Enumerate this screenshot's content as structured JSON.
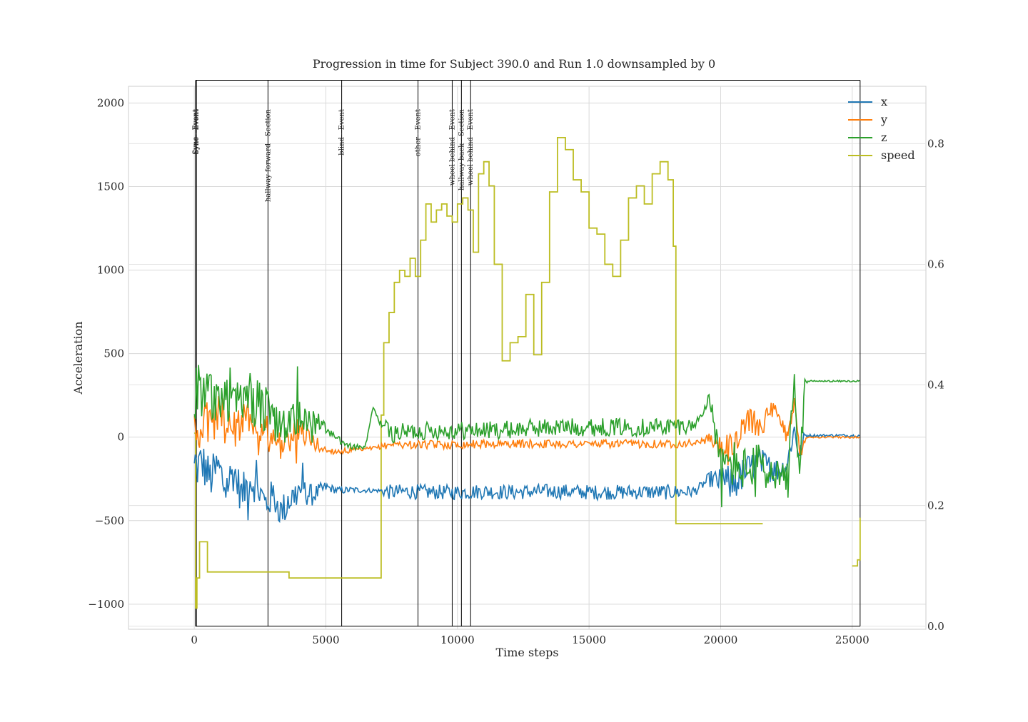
{
  "chart_data": {
    "type": "line",
    "title": "Progression in time for Subject 390.0 and Run 1.0 downsampled by 0",
    "xlabel": "Time steps",
    "ylabel": "Acceleration",
    "xlim": [
      -2500,
      27800
    ],
    "ylim": [
      -1150,
      2100
    ],
    "y2lim": [
      -0.005,
      0.895
    ],
    "x_ticks": [
      "0",
      "5000",
      "10000",
      "15000",
      "20000",
      "25000"
    ],
    "x_tick_values": [
      0,
      5000,
      10000,
      15000,
      20000,
      25000
    ],
    "y_ticks": [
      "−1000",
      "−500",
      "0",
      "500",
      "1000",
      "1500",
      "2000"
    ],
    "y_tick_values": [
      -1000,
      -500,
      0,
      500,
      1000,
      1500,
      2000
    ],
    "y2_ticks": [
      "0.0",
      "0.2",
      "0.4",
      "0.6",
      "0.8"
    ],
    "y2_tick_values": [
      0.0,
      0.2,
      0.4,
      0.6,
      0.8
    ],
    "grid": true,
    "legend": "top-right",
    "colors": {
      "x": "#1f77b4",
      "y": "#ff7f0e",
      "z": "#2ca02c",
      "speed": "#bcbd22",
      "events": "#000000"
    },
    "series": [
      {
        "name": "x",
        "axis": "left",
        "points": [
          [
            0,
            -200
          ],
          [
            300,
            -150
          ],
          [
            600,
            -250
          ],
          [
            900,
            -180
          ],
          [
            1200,
            -300
          ],
          [
            1500,
            -200
          ],
          [
            1800,
            -350
          ],
          [
            2100,
            -250
          ],
          [
            2400,
            -300
          ],
          [
            2700,
            -400
          ],
          [
            3000,
            -350
          ],
          [
            3300,
            -450
          ],
          [
            3600,
            -380
          ],
          [
            4000,
            -320
          ],
          [
            4500,
            -350
          ],
          [
            5000,
            -300
          ],
          [
            5500,
            -320
          ],
          [
            6000,
            -315
          ],
          [
            6500,
            -318
          ],
          [
            7000,
            -320
          ],
          [
            7500,
            -330
          ],
          [
            8000,
            -325
          ],
          [
            9000,
            -330
          ],
          [
            10000,
            -330
          ],
          [
            11000,
            -325
          ],
          [
            12000,
            -330
          ],
          [
            13000,
            -325
          ],
          [
            14000,
            -325
          ],
          [
            15000,
            -330
          ],
          [
            16000,
            -330
          ],
          [
            17000,
            -328
          ],
          [
            18000,
            -330
          ],
          [
            19000,
            -325
          ],
          [
            19600,
            -250
          ],
          [
            20000,
            -270
          ],
          [
            20500,
            -280
          ],
          [
            21000,
            -200
          ],
          [
            21500,
            -150
          ],
          [
            22000,
            -200
          ],
          [
            22500,
            -180
          ],
          [
            22800,
            50
          ],
          [
            23000,
            -120
          ],
          [
            23200,
            10
          ],
          [
            23600,
            10
          ],
          [
            24500,
            10
          ],
          [
            25300,
            10
          ]
        ],
        "amp": [
          [
            0,
            140
          ],
          [
            4000,
            90
          ],
          [
            5200,
            25
          ],
          [
            7000,
            12
          ],
          [
            7300,
            45
          ],
          [
            18500,
            45
          ],
          [
            19300,
            25
          ],
          [
            20300,
            110
          ],
          [
            23100,
            60
          ],
          [
            23300,
            8
          ],
          [
            25300,
            8
          ]
        ]
      },
      {
        "name": "y",
        "axis": "left",
        "points": [
          [
            0,
            0
          ],
          [
            300,
            100
          ],
          [
            600,
            50
          ],
          [
            900,
            150
          ],
          [
            1200,
            80
          ],
          [
            1500,
            120
          ],
          [
            1800,
            60
          ],
          [
            2100,
            150
          ],
          [
            2400,
            50
          ],
          [
            2700,
            30
          ],
          [
            3000,
            -20
          ],
          [
            3500,
            -50
          ],
          [
            4000,
            50
          ],
          [
            4500,
            -30
          ],
          [
            5000,
            -80
          ],
          [
            5500,
            -85
          ],
          [
            6000,
            -80
          ],
          [
            6500,
            -75
          ],
          [
            7000,
            -60
          ],
          [
            7500,
            -40
          ],
          [
            8000,
            -45
          ],
          [
            9000,
            -45
          ],
          [
            10000,
            -45
          ],
          [
            11000,
            -40
          ],
          [
            12000,
            -40
          ],
          [
            13000,
            -40
          ],
          [
            14000,
            -40
          ],
          [
            15000,
            -40
          ],
          [
            16000,
            -40
          ],
          [
            17000,
            -40
          ],
          [
            18000,
            -40
          ],
          [
            19000,
            -35
          ],
          [
            19600,
            -10
          ],
          [
            20000,
            -70
          ],
          [
            20500,
            -70
          ],
          [
            21000,
            100
          ],
          [
            21500,
            80
          ],
          [
            22000,
            150
          ],
          [
            22500,
            20
          ],
          [
            22800,
            200
          ],
          [
            23000,
            -100
          ],
          [
            23200,
            0
          ],
          [
            23600,
            0
          ],
          [
            24500,
            0
          ],
          [
            25300,
            0
          ]
        ],
        "amp": [
          [
            0,
            150
          ],
          [
            4000,
            80
          ],
          [
            5200,
            20
          ],
          [
            7000,
            12
          ],
          [
            7300,
            25
          ],
          [
            18500,
            25
          ],
          [
            19300,
            15
          ],
          [
            20300,
            90
          ],
          [
            23100,
            60
          ],
          [
            23300,
            6
          ],
          [
            25300,
            6
          ]
        ]
      },
      {
        "name": "z",
        "axis": "left",
        "points": [
          [
            0,
            270
          ],
          [
            300,
            300
          ],
          [
            600,
            250
          ],
          [
            900,
            280
          ],
          [
            1200,
            200
          ],
          [
            1500,
            260
          ],
          [
            1800,
            150
          ],
          [
            2100,
            250
          ],
          [
            2400,
            200
          ],
          [
            2700,
            150
          ],
          [
            3000,
            100
          ],
          [
            3500,
            50
          ],
          [
            4000,
            150
          ],
          [
            4500,
            100
          ],
          [
            5000,
            50
          ],
          [
            5500,
            -20
          ],
          [
            6000,
            -60
          ],
          [
            6500,
            -60
          ],
          [
            6800,
            180
          ],
          [
            7000,
            100
          ],
          [
            7500,
            20
          ],
          [
            8000,
            30
          ],
          [
            9000,
            40
          ],
          [
            10000,
            40
          ],
          [
            11000,
            40
          ],
          [
            12000,
            45
          ],
          [
            13000,
            55
          ],
          [
            14000,
            60
          ],
          [
            15000,
            60
          ],
          [
            16000,
            60
          ],
          [
            17000,
            60
          ],
          [
            18000,
            65
          ],
          [
            19000,
            70
          ],
          [
            19600,
            220
          ],
          [
            20000,
            -170
          ],
          [
            20500,
            -160
          ],
          [
            21000,
            -200
          ],
          [
            21500,
            -150
          ],
          [
            22000,
            -250
          ],
          [
            22500,
            -300
          ],
          [
            22800,
            300
          ],
          [
            23000,
            -250
          ],
          [
            23200,
            335
          ],
          [
            23600,
            335
          ],
          [
            24500,
            335
          ],
          [
            25300,
            335
          ]
        ],
        "amp": [
          [
            0,
            220
          ],
          [
            4000,
            120
          ],
          [
            5200,
            25
          ],
          [
            7000,
            12
          ],
          [
            7300,
            55
          ],
          [
            18500,
            55
          ],
          [
            19300,
            20
          ],
          [
            20300,
            150
          ],
          [
            23100,
            90
          ],
          [
            23300,
            5
          ],
          [
            25300,
            5
          ]
        ]
      },
      {
        "name": "speed",
        "axis": "right",
        "points": [
          [
            0,
            0.32
          ],
          [
            50,
            0.03
          ],
          [
            100,
            0.08
          ],
          [
            200,
            0.14
          ],
          [
            500,
            0.09
          ],
          [
            1000,
            0.09
          ],
          [
            2000,
            0.09
          ],
          [
            3000,
            0.09
          ],
          [
            3600,
            0.09
          ],
          [
            3600,
            0.08
          ],
          [
            5000,
            0.08
          ],
          [
            6000,
            0.08
          ],
          [
            7000,
            0.08
          ],
          [
            7100,
            0.08
          ],
          [
            7100,
            0.35
          ],
          [
            7200,
            0.47
          ],
          [
            7400,
            0.52
          ],
          [
            7600,
            0.57
          ],
          [
            7800,
            0.59
          ],
          [
            8000,
            0.58
          ],
          [
            8200,
            0.61
          ],
          [
            8400,
            0.58
          ],
          [
            8600,
            0.64
          ],
          [
            8800,
            0.7
          ],
          [
            9000,
            0.67
          ],
          [
            9200,
            0.69
          ],
          [
            9400,
            0.7
          ],
          [
            9600,
            0.68
          ],
          [
            9800,
            0.67
          ],
          [
            10000,
            0.7
          ],
          [
            10200,
            0.71
          ],
          [
            10400,
            0.69
          ],
          [
            10600,
            0.62
          ],
          [
            10800,
            0.75
          ],
          [
            11000,
            0.77
          ],
          [
            11200,
            0.73
          ],
          [
            11400,
            0.6
          ],
          [
            11700,
            0.44
          ],
          [
            12000,
            0.47
          ],
          [
            12300,
            0.48
          ],
          [
            12600,
            0.55
          ],
          [
            12900,
            0.45
          ],
          [
            13200,
            0.57
          ],
          [
            13500,
            0.72
          ],
          [
            13800,
            0.81
          ],
          [
            14100,
            0.79
          ],
          [
            14400,
            0.74
          ],
          [
            14700,
            0.72
          ],
          [
            15000,
            0.66
          ],
          [
            15300,
            0.65
          ],
          [
            15600,
            0.6
          ],
          [
            15900,
            0.58
          ],
          [
            16200,
            0.64
          ],
          [
            16500,
            0.71
          ],
          [
            16800,
            0.73
          ],
          [
            17100,
            0.7
          ],
          [
            17400,
            0.75
          ],
          [
            17700,
            0.77
          ],
          [
            18000,
            0.74
          ],
          [
            18200,
            0.63
          ],
          [
            18300,
            0.53
          ],
          [
            18300,
            0.17
          ],
          [
            19000,
            0.17
          ],
          [
            20000,
            0.17
          ],
          [
            21000,
            0.17
          ],
          [
            21600,
            0.17
          ],
          [
            21600,
            null
          ],
          [
            25000,
            0.1
          ],
          [
            25200,
            0.11
          ],
          [
            25300,
            0.18
          ]
        ],
        "step": true
      }
    ],
    "events": [
      {
        "x": 50,
        "label": "Sync - Event"
      },
      {
        "x": 80,
        "label": "Sync - Event"
      },
      {
        "x": 2800,
        "label": "hallway forward - Section"
      },
      {
        "x": 5600,
        "label": "blind - Event"
      },
      {
        "x": 8500,
        "label": "other - Event"
      },
      {
        "x": 9800,
        "label": "wheel behind - Event"
      },
      {
        "x": 10150,
        "label": "hallway back - Section"
      },
      {
        "x": 10500,
        "label": "wheel behind - Event"
      },
      {
        "x": 25300,
        "label": ""
      }
    ],
    "event_box": {
      "x0": 50,
      "x1": 25300,
      "y_top": 0.905,
      "y_bottom": 0.0
    }
  }
}
